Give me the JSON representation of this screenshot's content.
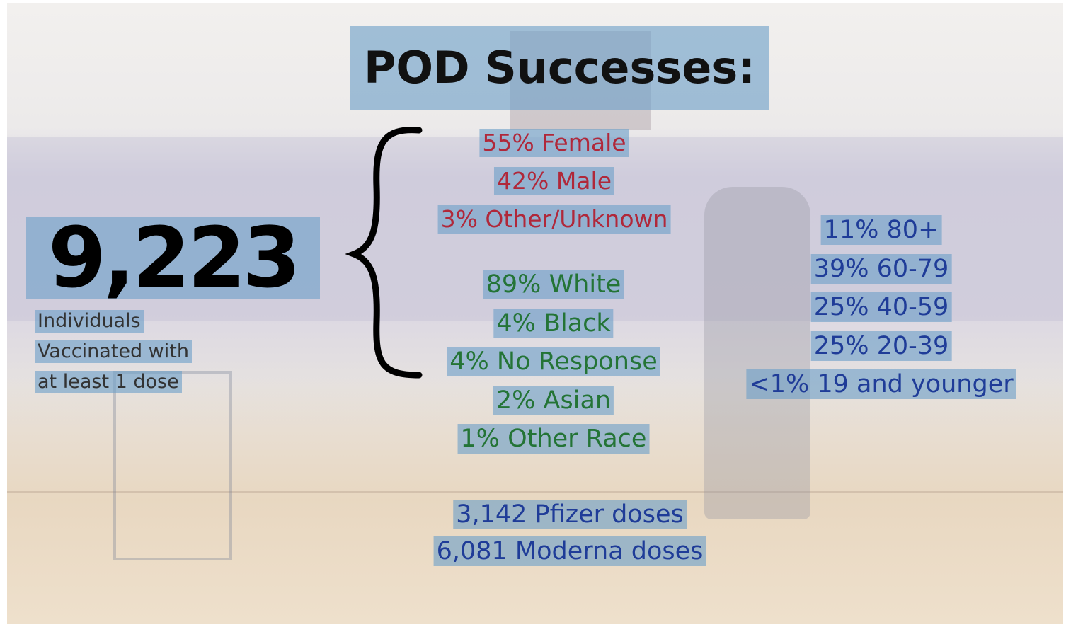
{
  "title": "POD Successes:",
  "total": {
    "value": "9,223",
    "caption": [
      "Individuals",
      "Vaccinated with",
      "at least 1 dose"
    ]
  },
  "gender": [
    "55% Female",
    "42% Male",
    "3% Other/Unknown"
  ],
  "race": [
    "89% White",
    "4% Black",
    "4% No Response",
    "2% Asian",
    "1% Other Race"
  ],
  "age": [
    "11% 80+",
    "39% 60-79",
    "25% 40-59",
    "25% 20-39",
    "<1% 19 and younger"
  ],
  "doses": [
    "3,142 Pfizer doses",
    "6,081 Moderna doses"
  ]
}
